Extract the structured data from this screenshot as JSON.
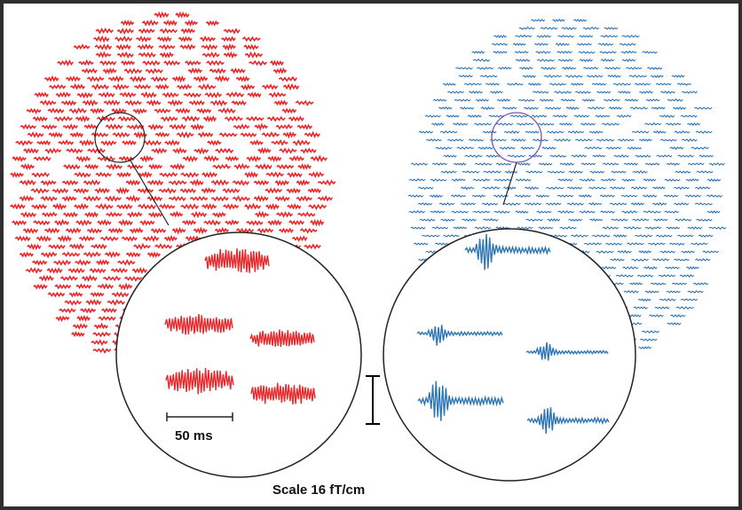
{
  "figure": {
    "time_scale_label": "50 ms",
    "amplitude_scale_caption": "Scale 16 fT/cm"
  },
  "panels": [
    {
      "name": "left-sensor-array",
      "color": "#e8282b",
      "waveform_style": "high-frequency oscillatory activity"
    },
    {
      "name": "right-sensor-array",
      "color": "#2e76b6",
      "waveform_style": "transient spike followed by low-amplitude activity"
    }
  ],
  "colors": {
    "red_traces": "#e8282b",
    "blue_traces": "#2e76b6",
    "purple_highlight": "#7a55b0",
    "outline": "#222222"
  }
}
